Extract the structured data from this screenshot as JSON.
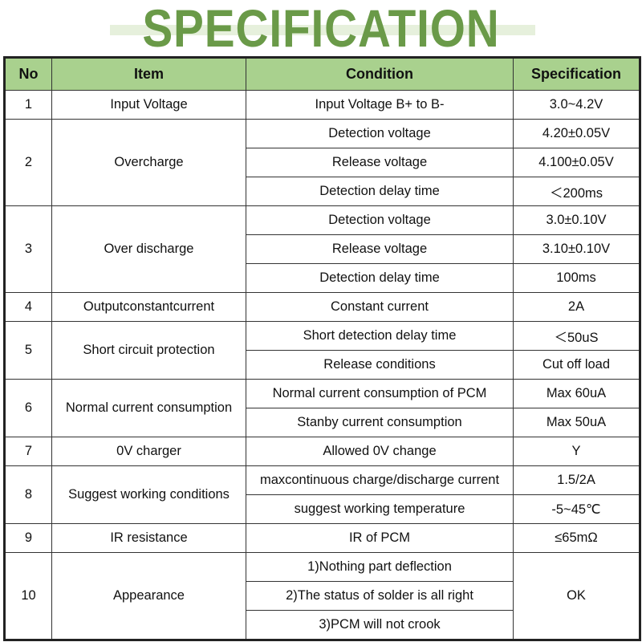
{
  "title": "SPECIFICATION",
  "colors": {
    "title": "#6a9a48",
    "header_bg": "#a9d18e",
    "band": "#e6f0dc"
  },
  "headers": [
    "No",
    "Item",
    "Condition",
    "Specification"
  ],
  "groups": [
    {
      "no": "1",
      "item": "Input Voltage",
      "rows": [
        {
          "condition": "Input Voltage B+ to B-",
          "spec": "3.0~4.2V"
        }
      ]
    },
    {
      "no": "2",
      "item": "Overcharge",
      "rows": [
        {
          "condition": "Detection voltage",
          "spec": "4.20±0.05V"
        },
        {
          "condition": "Release voltage",
          "spec": "4.100±0.05V"
        },
        {
          "condition": "Detection delay time",
          "spec": "＜200ms"
        }
      ]
    },
    {
      "no": "3",
      "item": "Over discharge",
      "rows": [
        {
          "condition": "Detection voltage",
          "spec": "3.0±0.10V"
        },
        {
          "condition": "Release voltage",
          "spec": "3.10±0.10V"
        },
        {
          "condition": "Detection delay time",
          "spec": "100ms"
        }
      ]
    },
    {
      "no": "4",
      "item": "Outputconstantcurrent",
      "rows": [
        {
          "condition": "Constant current",
          "spec": "2A"
        }
      ]
    },
    {
      "no": "5",
      "item": "Short circuit protection",
      "rows": [
        {
          "condition": "Short detection delay time",
          "spec": "＜50uS"
        },
        {
          "condition": "Release conditions",
          "spec": "Cut off load"
        }
      ]
    },
    {
      "no": "6",
      "item": "Normal current consumption",
      "rows": [
        {
          "condition": "Normal current consumption of PCM",
          "spec": "Max 60uA"
        },
        {
          "condition": "Stanby current consumption",
          "spec": "Max 50uA"
        }
      ]
    },
    {
      "no": "7",
      "item": "0V charger",
      "rows": [
        {
          "condition": "Allowed 0V change",
          "spec": "Y"
        }
      ]
    },
    {
      "no": "8",
      "item": "Suggest working conditions",
      "rows": [
        {
          "condition": "maxcontinuous charge/discharge current",
          "spec": "1.5/2A"
        },
        {
          "condition": "suggest working temperature",
          "spec": "-5~45℃"
        }
      ]
    },
    {
      "no": "9",
      "item": "IR resistance",
      "rows": [
        {
          "condition": "IR of PCM",
          "spec": "≤65mΩ"
        }
      ]
    },
    {
      "no": "10",
      "item": "Appearance",
      "spec_merged": "OK",
      "rows": [
        {
          "condition": "1)Nothing part deflection"
        },
        {
          "condition": "2)The status of solder is all right"
        },
        {
          "condition": "3)PCM will not crook"
        }
      ]
    }
  ]
}
